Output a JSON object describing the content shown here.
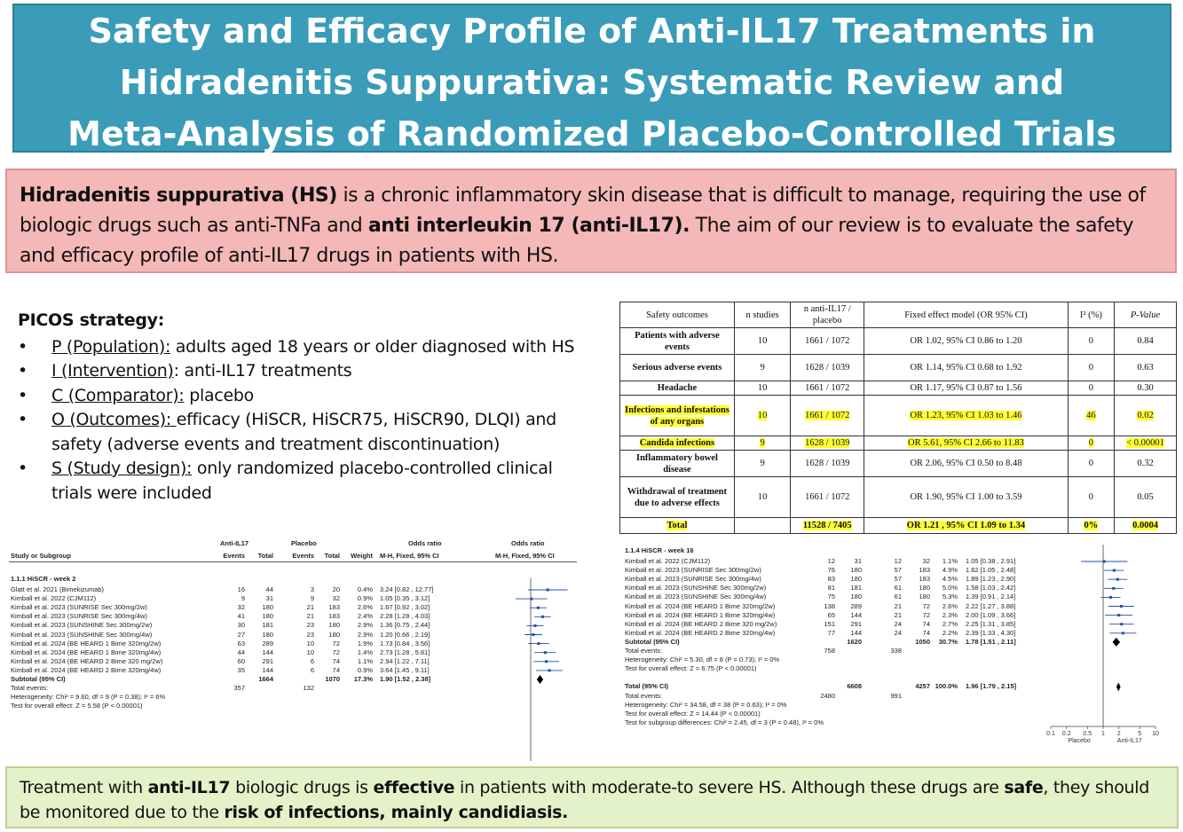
{
  "title": {
    "line1": "Safety and Efficacy Profile of Anti-IL17 Treatments in",
    "line2": "Hidradenitis Suppurativa: Systematic Review and",
    "line3": "Meta-Analysis of Randomized Placebo-Controlled Trials"
  },
  "intro": {
    "term": "Hidradenitis suppurativa (HS)",
    "text1": " is a chronic inflammatory skin disease that is difficult to manage, requiring the use of biologic drugs such as anti-TNFa and ",
    "bold2": "anti interleukin 17 (anti-IL17).",
    "text2": " The aim of our review is to evaluate the safety and efficacy profile of anti-IL17 drugs in patients with HS."
  },
  "picos": {
    "heading": "PICOS strategy:",
    "items": [
      {
        "label": "P (Population):",
        "text": " adults aged 18 years or older diagnosed with HS"
      },
      {
        "label": "I (Intervention)",
        "text": ": anti-IL17 treatments"
      },
      {
        "label": "C (Comparator):",
        "text": " placebo"
      },
      {
        "label": "O (Outcomes): ",
        "text": "efficacy (HiSCR, HiSCR75, HiSCR90, DLQI) and safety (adverse events and treatment discontinuation)"
      },
      {
        "label": "S (Study design):",
        "text": " only randomized placebo-controlled clinical trials were included"
      }
    ]
  },
  "safety_table": {
    "headers": [
      "Safety outcomes",
      "n studies",
      "n anti-IL17 / placebo",
      "Fixed effect model (OR 95% CI)",
      "I² (%)",
      "P-Value"
    ],
    "rows": [
      {
        "outcome": "Patients with adverse events",
        "n": "10",
        "counts": "1661 / 1072",
        "or": "OR 1.02, 95% CI 0.86 to 1.20",
        "i2": "0",
        "p": "0.84",
        "highlight": false
      },
      {
        "outcome": "Serious adverse events",
        "n": "9",
        "counts": "1628 / 1039",
        "or": "OR 1.14, 95% CI 0.68 to 1.92",
        "i2": "0",
        "p": "0.63",
        "highlight": false
      },
      {
        "outcome": "Headache",
        "n": "10",
        "counts": "1661 / 1072",
        "or": "OR 1.17, 95% CI 0.87 to 1.56",
        "i2": "0",
        "p": "0.30",
        "highlight": false
      },
      {
        "outcome": "Infections and infestations of any organs",
        "n": "10",
        "counts": "1661 / 1072",
        "or": "OR 1.23, 95% CI 1.03 to 1.46",
        "i2": "46",
        "p": "0.02",
        "highlight": true
      },
      {
        "outcome": "Candida infections",
        "n": "9",
        "counts": "1628 / 1039",
        "or": "OR 5.61, 95% CI 2.66 to 11.83",
        "i2": "0",
        "p": "< 0.00001",
        "highlight": true
      },
      {
        "outcome": "Inflammatory bowel disease",
        "n": "9",
        "counts": "1628 / 1039",
        "or": "OR 2.06, 95% CI 0.50 to 8.48",
        "i2": "0",
        "p": "0.32",
        "highlight": false
      },
      {
        "outcome": "Withdrawal of treatment due to adverse effects",
        "n": "10",
        "counts": "1661 / 1072",
        "or": "OR 1.90, 95% CI 1.00 to 3.59",
        "i2": "0",
        "p": "0.05",
        "highlight": false
      }
    ],
    "total": {
      "outcome": "Total",
      "n": "",
      "counts": "11528 / 7405",
      "or": "OR 1.21 , 95% CI 1.09 to 1.34",
      "i2": "0%",
      "p": "0.0004"
    }
  },
  "forest_left": {
    "head_group1": "Anti-IL17",
    "head_group2": "Placebo",
    "head_or1": "Odds ratio",
    "head_or2": "Odds ratio",
    "head_study": "Study or Subgroup",
    "head_events1": "Events",
    "head_total1": "Total",
    "head_events2": "Events",
    "head_total2": "Total",
    "head_weight": "Weight",
    "head_method1": "M-H, Fixed, 95% CI",
    "head_method2": "M-H, Fixed, 95% CI",
    "subgroup": "1.1.1 HiSCR - week 2",
    "studies": [
      {
        "name": "Glatt et al. 2021 (Bimekizumab)",
        "e1": "16",
        "t1": "44",
        "e2": "3",
        "t2": "20",
        "w": "0.4%",
        "ci": "3.24 [0.82 , 12.77]",
        "or": 3.24,
        "lo": 0.82,
        "hi": 12.77
      },
      {
        "name": "Kimball et al. 2022 (CJM112)",
        "e1": "9",
        "t1": "31",
        "e2": "9",
        "t2": "32",
        "w": "0.9%",
        "ci": "1.05 [0.35 , 3.12]",
        "or": 1.05,
        "lo": 0.35,
        "hi": 3.12
      },
      {
        "name": "Kimball et al. 2023 (SUNRISE Sec 300mg/2w)",
        "e1": "32",
        "t1": "180",
        "e2": "21",
        "t2": "183",
        "w": "2.6%",
        "ci": "1.67 [0.92 , 3.02]",
        "or": 1.67,
        "lo": 0.92,
        "hi": 3.02
      },
      {
        "name": "Kimball et al. 2023 (SUNRISE Sec 300mg/4w)",
        "e1": "41",
        "t1": "180",
        "e2": "21",
        "t2": "183",
        "w": "2.4%",
        "ci": "2.28 [1.28 , 4.03]",
        "or": 2.28,
        "lo": 1.28,
        "hi": 4.03
      },
      {
        "name": "Kimball et al. 2023 (SUNSHINE Sec 300mg/2w)",
        "e1": "30",
        "t1": "181",
        "e2": "23",
        "t2": "180",
        "w": "2.9%",
        "ci": "1.36 [0.75 , 2.44]",
        "or": 1.36,
        "lo": 0.75,
        "hi": 2.44
      },
      {
        "name": "Kimball et al. 2023 (SUNSHINE Sec 300mg/4w)",
        "e1": "27",
        "t1": "180",
        "e2": "23",
        "t2": "180",
        "w": "2.9%",
        "ci": "1.20 [0.66 , 2.19]",
        "or": 1.2,
        "lo": 0.66,
        "hi": 2.19
      },
      {
        "name": "Kimball et al. 2024 (BE HEARD 1 Bime 320mg/2w)",
        "e1": "63",
        "t1": "289",
        "e2": "10",
        "t2": "72",
        "w": "1.9%",
        "ci": "1.73 [0.84 , 3.56]",
        "or": 1.73,
        "lo": 0.84,
        "hi": 3.56
      },
      {
        "name": "Kimball et al. 2024 (BE HEARD 1 Bime 320mg/4w)",
        "e1": "44",
        "t1": "144",
        "e2": "10",
        "t2": "72",
        "w": "1.4%",
        "ci": "2.73 [1.28 , 5.81]",
        "or": 2.73,
        "lo": 1.28,
        "hi": 5.81
      },
      {
        "name": "Kimball et al. 2024 (BE HEARD 2 Bime 320 mg/2w)",
        "e1": "60",
        "t1": "291",
        "e2": "6",
        "t2": "74",
        "w": "1.1%",
        "ci": "2.94 [1.22 , 7.11]",
        "or": 2.94,
        "lo": 1.22,
        "hi": 7.11
      },
      {
        "name": "Kimball et al. 2024 (BE HEARD 2 Bime 320mg/4w)",
        "e1": "35",
        "t1": "144",
        "e2": "6",
        "t2": "74",
        "w": "0.9%",
        "ci": "3.64 [1.45 , 9.11]",
        "or": 3.64,
        "lo": 1.45,
        "hi": 9.11
      }
    ],
    "subtotal": {
      "name": "Subtotal (95% CI)",
      "t1": "1664",
      "t2": "1070",
      "w": "17.3%",
      "ci": "1.90 [1.52 , 2.38]",
      "or": 1.9,
      "lo": 1.52,
      "hi": 2.38
    },
    "total_events": {
      "label": "Total events:",
      "e1": "357",
      "e2": "132"
    },
    "heterogeneity": "Heterogeneity: Chi² = 9.60, df = 9 (P = 0.38); I² = 6%",
    "overall": "Test for overall effect: Z = 5.58 (P < 0.00001)"
  },
  "forest_right": {
    "subgroup": "1.1.4 HiSCR - week 16",
    "studies": [
      {
        "name": "Kimball et al. 2022 (CJM112)",
        "e1": "12",
        "t1": "31",
        "e2": "12",
        "t2": "32",
        "w": "1.1%",
        "ci": "1.05 [0.38 , 2.91]",
        "or": 1.05,
        "lo": 0.38,
        "hi": 2.91
      },
      {
        "name": "Kimball et al. 2023 (SUNRISE Sec 300mg/2w)",
        "e1": "76",
        "t1": "180",
        "e2": "57",
        "t2": "183",
        "w": "4.9%",
        "ci": "1.62 [1.05 , 2.48]",
        "or": 1.62,
        "lo": 1.05,
        "hi": 2.48
      },
      {
        "name": "Kimball et al. 2023 (SUNRISE Sec 300mg/4w)",
        "e1": "83",
        "t1": "180",
        "e2": "57",
        "t2": "183",
        "w": "4.5%",
        "ci": "1.89 [1.23 , 2.90]",
        "or": 1.89,
        "lo": 1.23,
        "hi": 2.9
      },
      {
        "name": "Kimball et al. 2023 (SUNSHINE Sec 300mg/2w)",
        "e1": "81",
        "t1": "181",
        "e2": "61",
        "t2": "180",
        "w": "5.0%",
        "ci": "1.58 [1.03 , 2.42]",
        "or": 1.58,
        "lo": 1.03,
        "hi": 2.42
      },
      {
        "name": "Kimball et al. 2023 (SUNSHINE Sec 300mg/4w)",
        "e1": "75",
        "t1": "180",
        "e2": "61",
        "t2": "180",
        "w": "5.3%",
        "ci": "1.39 [0.91 , 2.14]",
        "or": 1.39,
        "lo": 0.91,
        "hi": 2.14
      },
      {
        "name": "Kimball et al. 2024 (BE HEARD 1 Bime 320mg/2w)",
        "e1": "138",
        "t1": "289",
        "e2": "21",
        "t2": "72",
        "w": "2.6%",
        "ci": "2.22 [1.27 , 3.88]",
        "or": 2.22,
        "lo": 1.27,
        "hi": 3.88
      },
      {
        "name": "Kimball et al. 2024 (BE HEARD 1 Bime 320mg/4w)",
        "e1": "65",
        "t1": "144",
        "e2": "21",
        "t2": "72",
        "w": "2.3%",
        "ci": "2.00 [1.09 , 3.66]",
        "or": 2.0,
        "lo": 1.09,
        "hi": 3.66
      },
      {
        "name": "Kimball et al. 2024 (BE HEARD 2 Bime 320 mg/2w)",
        "e1": "151",
        "t1": "291",
        "e2": "24",
        "t2": "74",
        "w": "2.7%",
        "ci": "2.25 [1.31 , 3.85]",
        "or": 2.25,
        "lo": 1.31,
        "hi": 3.85
      },
      {
        "name": "Kimball et al. 2024 (BE HEARD 2 Bime 320mg/4w)",
        "e1": "77",
        "t1": "144",
        "e2": "24",
        "t2": "74",
        "w": "2.2%",
        "ci": "2.39 [1.33 , 4.30]",
        "or": 2.39,
        "lo": 1.33,
        "hi": 4.3
      }
    ],
    "subtotal": {
      "name": "Subtotal (95% CI)",
      "t1": "1620",
      "t2": "1050",
      "w": "30.7%",
      "ci": "1.78 [1.51 , 2.11]",
      "or": 1.78,
      "lo": 1.51,
      "hi": 2.11
    },
    "total_events": {
      "label": "Total events:",
      "e1": "758",
      "e2": "338"
    },
    "heterogeneity": "Heterogeneity: Chi² = 5.30, df = 8 (P = 0.73); I² = 0%",
    "overall": "Test for overall effect: Z = 6.75 (P < 0.00001)",
    "grand_total": {
      "name": "Total (95% CI)",
      "t1": "6608",
      "t2": "4257",
      "w": "100.0%",
      "ci": "1.96 [1.79 , 2.15]",
      "or": 1.96,
      "lo": 1.79,
      "hi": 2.15
    },
    "grand_events": {
      "label": "Total events:",
      "e1": "2480",
      "e2": "991"
    },
    "grand_heterogeneity": "Heterogeneity: Chi² = 34.58, df = 38 (P = 0.63); I² = 0%",
    "grand_overall": "Test for overall effect: Z = 14.44 (P < 0.00001)",
    "subgroup_diff": "Test for subgroup differences: Chi² = 2.45, df = 3 (P = 0.48), I² = 0%",
    "axis_ticks": [
      "0.1",
      "0.2",
      "0.5",
      "1",
      "2",
      "5",
      "10"
    ],
    "axis_left_label": "Placebo",
    "axis_right_label": "Anti-IL17"
  },
  "chart_data": [
    {
      "type": "forest",
      "title": "1.1.1 HiSCR - week 2",
      "scale": "log",
      "xlim": [
        0.1,
        10
      ],
      "series": [
        {
          "name": "Glatt et al. 2021 (Bimekizumab)",
          "or": 3.24,
          "lo": 0.82,
          "hi": 12.77
        },
        {
          "name": "Kimball et al. 2022 (CJM112)",
          "or": 1.05,
          "lo": 0.35,
          "hi": 3.12
        },
        {
          "name": "Kimball et al. 2023 (SUNRISE Sec 300mg/2w)",
          "or": 1.67,
          "lo": 0.92,
          "hi": 3.02
        },
        {
          "name": "Kimball et al. 2023 (SUNRISE Sec 300mg/4w)",
          "or": 2.28,
          "lo": 1.28,
          "hi": 4.03
        },
        {
          "name": "Kimball et al. 2023 (SUNSHINE Sec 300mg/2w)",
          "or": 1.36,
          "lo": 0.75,
          "hi": 2.44
        },
        {
          "name": "Kimball et al. 2023 (SUNSHINE Sec 300mg/4w)",
          "or": 1.2,
          "lo": 0.66,
          "hi": 2.19
        },
        {
          "name": "Kimball et al. 2024 (BE HEARD 1 Bime 320mg/2w)",
          "or": 1.73,
          "lo": 0.84,
          "hi": 3.56
        },
        {
          "name": "Kimball et al. 2024 (BE HEARD 1 Bime 320mg/4w)",
          "or": 2.73,
          "lo": 1.28,
          "hi": 5.81
        },
        {
          "name": "Kimball et al. 2024 (BE HEARD 2 Bime 320 mg/2w)",
          "or": 2.94,
          "lo": 1.22,
          "hi": 7.11
        },
        {
          "name": "Kimball et al. 2024 (BE HEARD 2 Bime 320mg/4w)",
          "or": 3.64,
          "lo": 1.45,
          "hi": 9.11
        },
        {
          "name": "Subtotal (95% CI)",
          "or": 1.9,
          "lo": 1.52,
          "hi": 2.38
        }
      ]
    },
    {
      "type": "forest",
      "title": "1.1.4 HiSCR - week 16",
      "scale": "log",
      "xlim": [
        0.1,
        10
      ],
      "series": [
        {
          "name": "Kimball et al. 2022 (CJM112)",
          "or": 1.05,
          "lo": 0.38,
          "hi": 2.91
        },
        {
          "name": "Kimball et al. 2023 (SUNRISE Sec 300mg/2w)",
          "or": 1.62,
          "lo": 1.05,
          "hi": 2.48
        },
        {
          "name": "Kimball et al. 2023 (SUNRISE Sec 300mg/4w)",
          "or": 1.89,
          "lo": 1.23,
          "hi": 2.9
        },
        {
          "name": "Kimball et al. 2023 (SUNSHINE Sec 300mg/2w)",
          "or": 1.58,
          "lo": 1.03,
          "hi": 2.42
        },
        {
          "name": "Kimball et al. 2023 (SUNSHINE Sec 300mg/4w)",
          "or": 1.39,
          "lo": 0.91,
          "hi": 2.14
        },
        {
          "name": "Kimball et al. 2024 (BE HEARD 1 Bime 320mg/2w)",
          "or": 2.22,
          "lo": 1.27,
          "hi": 3.88
        },
        {
          "name": "Kimball et al. 2024 (BE HEARD 1 Bime 320mg/4w)",
          "or": 2.0,
          "lo": 1.09,
          "hi": 3.66
        },
        {
          "name": "Kimball et al. 2024 (BE HEARD 2 Bime 320 mg/2w)",
          "or": 2.25,
          "lo": 1.31,
          "hi": 3.85
        },
        {
          "name": "Kimball et al. 2024 (BE HEARD 2 Bime 320mg/4w)",
          "or": 2.39,
          "lo": 1.33,
          "hi": 4.3
        },
        {
          "name": "Subtotal (95% CI)",
          "or": 1.78,
          "lo": 1.51,
          "hi": 2.11
        },
        {
          "name": "Total (95% CI)",
          "or": 1.96,
          "lo": 1.79,
          "hi": 2.15
        }
      ]
    }
  ],
  "conclusion": {
    "t1": "Treatment with ",
    "b1": "anti-IL17",
    "t2": " biologic drugs is ",
    "b2": "effective",
    "t3": " in patients with moderate-to severe HS. Although these drugs are ",
    "b3": "safe",
    "t4": ", they should be monitored due to the ",
    "b4": "risk of infections, mainly candidiasis."
  },
  "colors": {
    "title_bg": "#3a9cb8",
    "intro_bg": "#f5b8b8",
    "conclusion_bg": "#e3f2c8",
    "highlight": "#ffff33",
    "forest_ci": "#1f4fa8"
  }
}
